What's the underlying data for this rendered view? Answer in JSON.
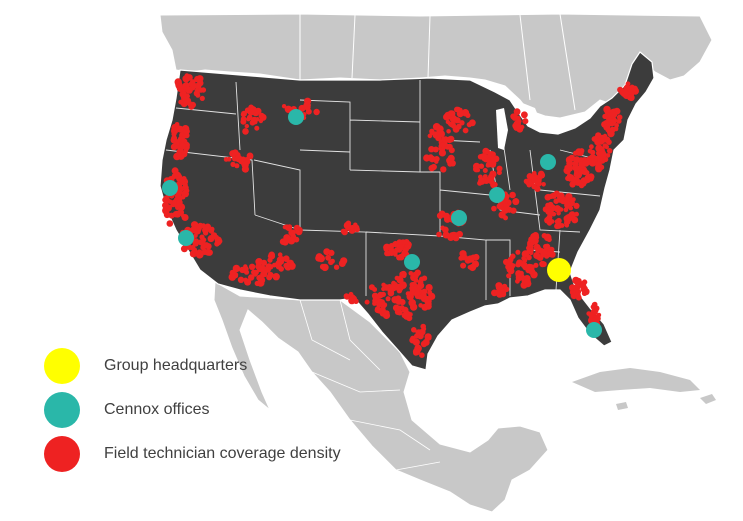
{
  "legend": {
    "items": [
      {
        "label": "Group headquarters",
        "color": "#ffff00"
      },
      {
        "label": "Cennox offices",
        "color": "#2ab7a9"
      },
      {
        "label": "Field technician coverage density",
        "color": "#ee2222"
      }
    ]
  },
  "colors": {
    "us_fill": "#3c3c3c",
    "neighbors_fill": "#c8c8c8",
    "borders": "#ffffff",
    "water": "#ffffff"
  },
  "markers": {
    "headquarters": [
      {
        "region": "Georgia"
      }
    ],
    "offices": [
      {
        "region": "Northern California"
      },
      {
        "region": "Southern California"
      },
      {
        "region": "Montana"
      },
      {
        "region": "Oklahoma"
      },
      {
        "region": "Missouri"
      },
      {
        "region": "Illinois"
      },
      {
        "region": "Ohio"
      },
      {
        "region": "Florida"
      }
    ]
  }
}
